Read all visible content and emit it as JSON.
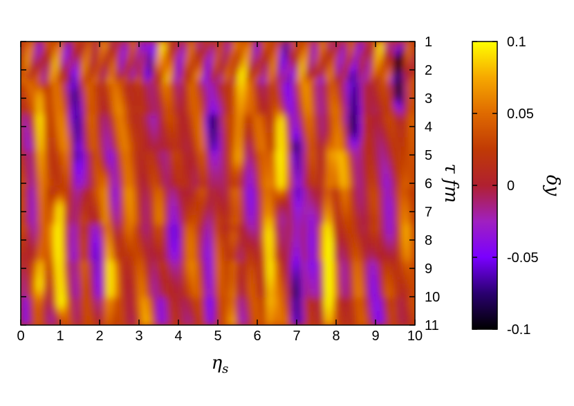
{
  "chart_data": {
    "type": "heatmap",
    "title": "",
    "xlabel": "η",
    "xlabel_sub": "s",
    "ylabel": "τ fm",
    "colorbar_label": "δy",
    "xlim": [
      0,
      10
    ],
    "ylim": [
      1,
      11
    ],
    "y_inverted": true,
    "y_axis_side": "right",
    "xticks": [
      "0",
      "1",
      "2",
      "3",
      "4",
      "5",
      "6",
      "7",
      "8",
      "9",
      "10"
    ],
    "yticks": [
      "1",
      "2",
      "3",
      "4",
      "5",
      "6",
      "7",
      "8",
      "9",
      "10",
      "11"
    ],
    "colorbar": {
      "range": [
        -0.1,
        0.1
      ],
      "ticks": [
        "0.1",
        "0.05",
        "0",
        "-0.05",
        "-0.1"
      ],
      "colormap": [
        "#000000",
        "#2a0070",
        "#7a00ff",
        "#a020c0",
        "#b02030",
        "#c03a05",
        "#df6a00",
        "#f6a800",
        "#ffff00"
      ]
    },
    "features": [
      {
        "eta": 0.5,
        "tau_from": 3,
        "tau_to": 9.5,
        "value": 0.08
      },
      {
        "eta": 1.0,
        "tau_from": 7,
        "tau_to": 10,
        "value": 0.1
      },
      {
        "eta": 1.4,
        "tau_from": 3,
        "tau_to": 11,
        "value": -0.05
      },
      {
        "eta": 2.2,
        "tau_from": 6,
        "tau_to": 11,
        "value": 0.07
      },
      {
        "eta": 4.8,
        "tau_from": 4,
        "tau_to": 11,
        "value": -0.06
      },
      {
        "eta": 5.4,
        "tau_from": 8,
        "tau_to": 11,
        "value": 0.08
      },
      {
        "eta": 5.55,
        "tau_from": 2.5,
        "tau_to": 5,
        "value": 0.09
      },
      {
        "eta": 6.6,
        "tau_from": 4,
        "tau_to": 6,
        "value": 0.09
      },
      {
        "eta": 6.3,
        "tau_from": 8,
        "tau_to": 11,
        "value": 0.08
      },
      {
        "eta": 7.0,
        "tau_from": 5,
        "tau_to": 11,
        "value": -0.07
      },
      {
        "eta": 7.8,
        "tau_from": 5,
        "tau_to": 11,
        "value": 0.08
      },
      {
        "eta": 8.5,
        "tau_from": 2.5,
        "tau_to": 4,
        "value": -0.08
      },
      {
        "eta": 9.6,
        "tau_from": 1.8,
        "tau_to": 2.8,
        "value": -0.09
      }
    ]
  }
}
